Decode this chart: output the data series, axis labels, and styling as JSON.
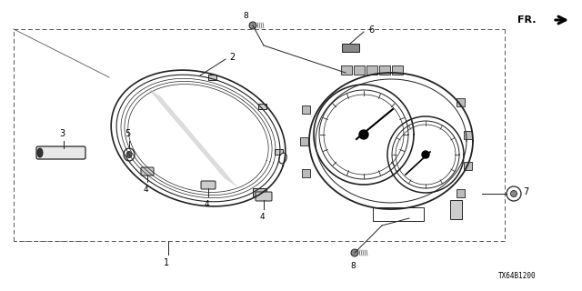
{
  "bg_color": "#ffffff",
  "lc": "#222222",
  "title_code": "TX64B1200",
  "fr_label": "FR."
}
